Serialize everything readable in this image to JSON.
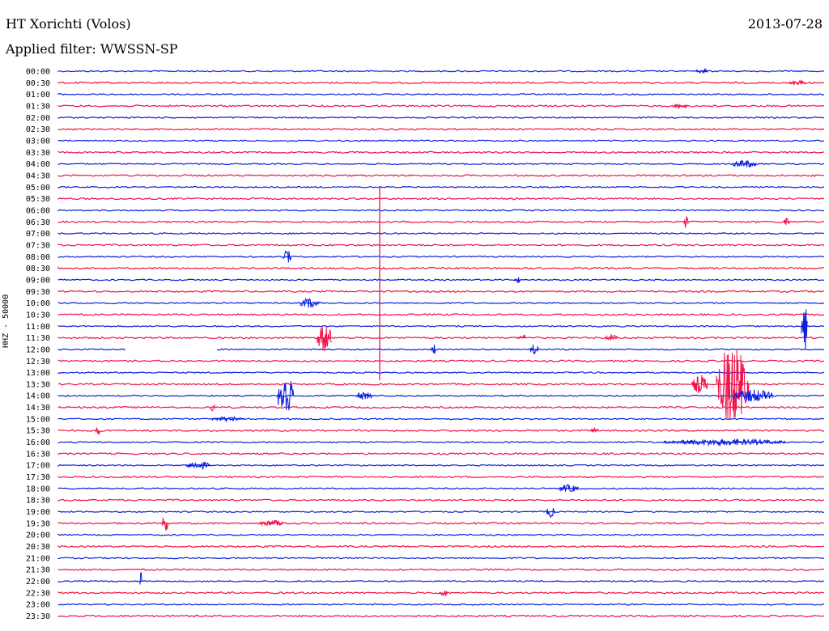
{
  "header": {
    "station": "HT Xorichti (Volos)",
    "date": "2013-07-28",
    "filter_label": "Applied filter: WWSSN-SP"
  },
  "channel_label": "HHZ - 50000",
  "colors": {
    "even_row": "#0b1ee0",
    "odd_row": "#f0124a"
  },
  "rows": [
    "00:00",
    "00:30",
    "01:00",
    "01:30",
    "02:00",
    "02:30",
    "03:00",
    "03:30",
    "04:00",
    "04:30",
    "05:00",
    "05:30",
    "06:00",
    "06:30",
    "07:00",
    "07:30",
    "08:00",
    "08:30",
    "09:00",
    "09:30",
    "10:00",
    "10:30",
    "11:00",
    "11:30",
    "12:00",
    "12:30",
    "13:00",
    "13:30",
    "14:00",
    "14:30",
    "15:00",
    "15:30",
    "16:00",
    "16:30",
    "17:00",
    "17:30",
    "18:00",
    "18:30",
    "19:00",
    "19:30",
    "20:00",
    "20:30",
    "21:00",
    "21:30",
    "22:00",
    "22:30",
    "23:00",
    "23:30"
  ]
}
